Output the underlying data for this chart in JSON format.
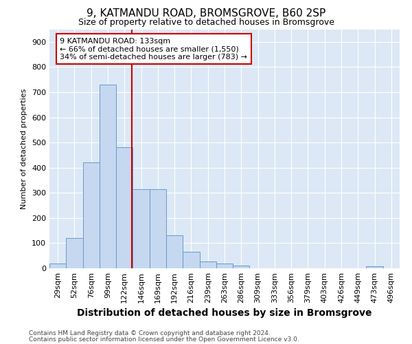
{
  "title1": "9, KATMANDU ROAD, BROMSGROVE, B60 2SP",
  "title2": "Size of property relative to detached houses in Bromsgrove",
  "xlabel": "Distribution of detached houses by size in Bromsgrove",
  "ylabel": "Number of detached properties",
  "categories": [
    "29sqm",
    "52sqm",
    "76sqm",
    "99sqm",
    "122sqm",
    "146sqm",
    "169sqm",
    "192sqm",
    "216sqm",
    "239sqm",
    "263sqm",
    "286sqm",
    "309sqm",
    "333sqm",
    "356sqm",
    "379sqm",
    "403sqm",
    "426sqm",
    "449sqm",
    "473sqm",
    "496sqm"
  ],
  "values": [
    20,
    120,
    420,
    730,
    480,
    315,
    315,
    130,
    65,
    28,
    20,
    10,
    0,
    0,
    0,
    0,
    0,
    0,
    0,
    8,
    0
  ],
  "bar_color": "#c5d8f0",
  "bar_edge_color": "#6699cc",
  "vline_color": "#cc0000",
  "annotation_text": "9 KATMANDU ROAD: 133sqm\n← 66% of detached houses are smaller (1,550)\n34% of semi-detached houses are larger (783) →",
  "annotation_box_color": "white",
  "annotation_box_edge": "#cc0000",
  "ylim": [
    0,
    950
  ],
  "yticks": [
    0,
    100,
    200,
    300,
    400,
    500,
    600,
    700,
    800,
    900
  ],
  "footnote1": "Contains HM Land Registry data © Crown copyright and database right 2024.",
  "footnote2": "Contains public sector information licensed under the Open Government Licence v3.0.",
  "bg_color": "#ffffff",
  "plot_bg_color": "#dce8f5",
  "grid_color": "#ffffff",
  "title1_fontsize": 11,
  "title2_fontsize": 9,
  "xlabel_fontsize": 10,
  "ylabel_fontsize": 8,
  "tick_fontsize": 8,
  "ann_fontsize": 8
}
